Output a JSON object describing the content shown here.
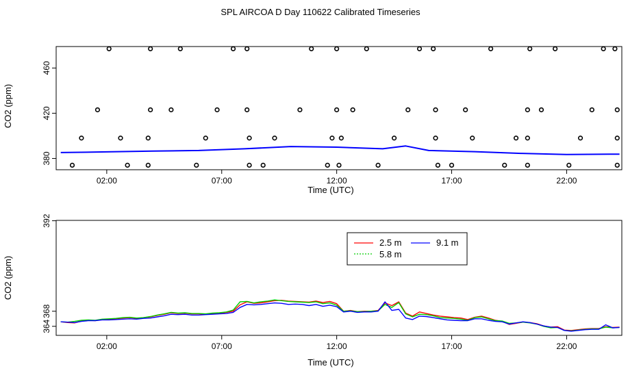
{
  "title": "SPL AIRCOA D  Day 110622  Calibrated Timeseries",
  "colors": {
    "s2_5": "#ff0000",
    "s5_8": "#00cd00",
    "s9_1": "#0000ff",
    "points": "#000000"
  },
  "chart_data": [
    {
      "type": "scatter",
      "xlabel": "Time (UTC)",
      "ylabel": "CO2 (ppm)",
      "xlim": [
        -0.2,
        24.4
      ],
      "ylim": [
        370,
        479
      ],
      "xticks": [
        2,
        7,
        12,
        17,
        22
      ],
      "xtick_labels": [
        "02:00",
        "07:00",
        "12:00",
        "17:00",
        "22:00"
      ],
      "yticks": [
        380,
        420,
        460
      ],
      "ytick_labels": [
        "380",
        "420",
        "460"
      ],
      "points": [
        {
          "x": 0.5,
          "y": 374
        },
        {
          "x": 0.9,
          "y": 398
        },
        {
          "x": 1.6,
          "y": 423
        },
        {
          "x": 2.1,
          "y": 477
        },
        {
          "x": 2.6,
          "y": 398
        },
        {
          "x": 2.9,
          "y": 374
        },
        {
          "x": 3.8,
          "y": 398
        },
        {
          "x": 3.8,
          "y": 374
        },
        {
          "x": 3.9,
          "y": 423
        },
        {
          "x": 3.9,
          "y": 477
        },
        {
          "x": 4.8,
          "y": 423
        },
        {
          "x": 5.2,
          "y": 477
        },
        {
          "x": 5.9,
          "y": 374
        },
        {
          "x": 6.3,
          "y": 398
        },
        {
          "x": 6.8,
          "y": 423
        },
        {
          "x": 7.5,
          "y": 477
        },
        {
          "x": 8.1,
          "y": 477
        },
        {
          "x": 8.1,
          "y": 423
        },
        {
          "x": 8.2,
          "y": 398
        },
        {
          "x": 8.2,
          "y": 374
        },
        {
          "x": 8.8,
          "y": 374
        },
        {
          "x": 9.3,
          "y": 398
        },
        {
          "x": 10.4,
          "y": 423
        },
        {
          "x": 10.9,
          "y": 477
        },
        {
          "x": 11.6,
          "y": 374
        },
        {
          "x": 11.8,
          "y": 398
        },
        {
          "x": 12.0,
          "y": 423
        },
        {
          "x": 12.0,
          "y": 477
        },
        {
          "x": 12.1,
          "y": 374
        },
        {
          "x": 12.2,
          "y": 398
        },
        {
          "x": 12.7,
          "y": 423
        },
        {
          "x": 13.3,
          "y": 477
        },
        {
          "x": 13.8,
          "y": 374
        },
        {
          "x": 14.5,
          "y": 398
        },
        {
          "x": 15.1,
          "y": 423
        },
        {
          "x": 15.6,
          "y": 477
        },
        {
          "x": 16.2,
          "y": 477
        },
        {
          "x": 16.3,
          "y": 423
        },
        {
          "x": 16.3,
          "y": 398
        },
        {
          "x": 16.4,
          "y": 374
        },
        {
          "x": 17.0,
          "y": 374
        },
        {
          "x": 17.6,
          "y": 423
        },
        {
          "x": 17.9,
          "y": 398
        },
        {
          "x": 18.7,
          "y": 477
        },
        {
          "x": 19.3,
          "y": 374
        },
        {
          "x": 19.8,
          "y": 398
        },
        {
          "x": 20.3,
          "y": 398
        },
        {
          "x": 20.3,
          "y": 374
        },
        {
          "x": 20.3,
          "y": 423
        },
        {
          "x": 20.4,
          "y": 477
        },
        {
          "x": 20.9,
          "y": 423
        },
        {
          "x": 21.5,
          "y": 477
        },
        {
          "x": 22.1,
          "y": 374
        },
        {
          "x": 22.6,
          "y": 398
        },
        {
          "x": 23.1,
          "y": 423
        },
        {
          "x": 23.6,
          "y": 477
        },
        {
          "x": 24.1,
          "y": 477
        },
        {
          "x": 24.2,
          "y": 423
        },
        {
          "x": 24.2,
          "y": 398
        },
        {
          "x": 24.2,
          "y": 374
        }
      ],
      "series": [
        {
          "name": "9.1 m",
          "color": "#0000ff",
          "x": [
            0,
            2,
            4,
            6,
            8,
            10,
            12,
            14,
            15,
            16,
            18,
            20,
            22,
            24.3
          ],
          "y": [
            385.2,
            385.8,
            386.5,
            387,
            388.5,
            390.5,
            390,
            388.5,
            391,
            387,
            386,
            384.5,
            383.5,
            383.8
          ]
        }
      ]
    },
    {
      "type": "line",
      "xlabel": "Time (UTC)",
      "ylabel": "CO2 (ppm)",
      "xlim": [
        -0.2,
        24.4
      ],
      "ylim": [
        361.6,
        392.1
      ],
      "xticks": [
        2,
        7,
        12,
        17,
        22
      ],
      "xtick_labels": [
        "02:00",
        "07:00",
        "12:00",
        "17:00",
        "22:00"
      ],
      "yticks": [
        364,
        368,
        392
      ],
      "ytick_labels": [
        "364",
        "368",
        "392"
      ],
      "legend": {
        "position": "top-center",
        "entries": [
          "2.5 m",
          "9.1 m",
          "5.8 m"
        ]
      },
      "series": [
        {
          "name": "2.5 m",
          "color": "#ff0000",
          "x": [
            0,
            0.3,
            0.6,
            0.9,
            1.2,
            1.5,
            1.8,
            2.1,
            2.4,
            2.7,
            3,
            3.3,
            3.6,
            3.9,
            4.2,
            4.5,
            4.8,
            5.1,
            5.4,
            5.7,
            6,
            6.3,
            6.6,
            6.9,
            7.2,
            7.5,
            7.8,
            8.1,
            8.4,
            8.7,
            9,
            9.3,
            9.6,
            9.9,
            10.2,
            10.5,
            10.8,
            11.1,
            11.4,
            11.7,
            12,
            12.3,
            12.6,
            12.9,
            13.2,
            13.5,
            13.8,
            14.1,
            14.4,
            14.7,
            15,
            15.3,
            15.6,
            15.9,
            16.2,
            16.5,
            16.8,
            17.1,
            17.4,
            17.7,
            18,
            18.3,
            18.6,
            18.9,
            19.2,
            19.5,
            19.8,
            20.1,
            20.4,
            20.7,
            21,
            21.3,
            21.6,
            21.9,
            22.2,
            22.5,
            22.8,
            23.1,
            23.4,
            23.7,
            24,
            24.3
          ],
          "y": [
            365.2,
            365.0,
            364.9,
            365.4,
            365.6,
            365.5,
            365.8,
            365.9,
            366.0,
            366.2,
            366.3,
            366.1,
            366.3,
            366.5,
            366.9,
            367.2,
            367.6,
            367.4,
            367.5,
            367.3,
            367.3,
            367.2,
            367.4,
            367.5,
            367.7,
            368.0,
            369.7,
            370.5,
            370.1,
            370.2,
            370.5,
            370.8,
            370.9,
            370.7,
            370.6,
            370.5,
            370.4,
            370.7,
            370.3,
            370.6,
            370.0,
            368.0,
            368.2,
            367.9,
            368.0,
            368.0,
            368.2,
            370.2,
            369.5,
            370.5,
            367.5,
            366.7,
            367.8,
            367.4,
            367.0,
            366.7,
            366.5,
            366.3,
            366.2,
            365.8,
            366.4,
            366.7,
            366.2,
            365.6,
            365.3,
            364.5,
            364.8,
            365.1,
            365.0,
            364.7,
            364.1,
            363.8,
            363.9,
            363.0,
            362.9,
            363.1,
            363.3,
            363.4,
            363.4,
            363.9,
            363.7,
            363.8
          ]
        },
        {
          "name": "5.8 m",
          "color": "#00cd00",
          "x": [
            0,
            0.3,
            0.6,
            0.9,
            1.2,
            1.5,
            1.8,
            2.1,
            2.4,
            2.7,
            3,
            3.3,
            3.6,
            3.9,
            4.2,
            4.5,
            4.8,
            5.1,
            5.4,
            5.7,
            6,
            6.3,
            6.6,
            6.9,
            7.2,
            7.5,
            7.8,
            8.1,
            8.4,
            8.7,
            9,
            9.3,
            9.6,
            9.9,
            10.2,
            10.5,
            10.8,
            11.1,
            11.4,
            11.7,
            12,
            12.3,
            12.6,
            12.9,
            13.2,
            13.5,
            13.8,
            14.1,
            14.4,
            14.7,
            15,
            15.3,
            15.6,
            15.9,
            16.2,
            16.5,
            16.8,
            17.1,
            17.4,
            17.7,
            18,
            18.3,
            18.6,
            18.9,
            19.2,
            19.5,
            19.8,
            20.1,
            20.4,
            20.7,
            21,
            21.3,
            21.6,
            21.9,
            22.2,
            22.5,
            22.8,
            23.1,
            23.4,
            23.7,
            24,
            24.3
          ],
          "y": [
            365.2,
            365.1,
            365.3,
            365.6,
            365.7,
            365.6,
            365.9,
            366.0,
            366.1,
            366.3,
            366.4,
            366.2,
            366.3,
            366.6,
            367.0,
            367.3,
            367.7,
            367.5,
            367.6,
            367.4,
            367.4,
            367.3,
            367.5,
            367.6,
            367.8,
            368.3,
            370.5,
            370.6,
            370.2,
            370.5,
            370.7,
            371.0,
            370.8,
            370.6,
            370.5,
            370.4,
            370.3,
            370.5,
            370.0,
            370.2,
            369.6,
            368.0,
            368.1,
            367.9,
            367.9,
            368.0,
            368.1,
            369.8,
            369.0,
            370.3,
            367.3,
            366.5,
            367.2,
            367.1,
            366.8,
            366.3,
            366.2,
            366.1,
            365.9,
            365.6,
            366.3,
            366.5,
            366.0,
            365.5,
            365.4,
            364.8,
            364.9,
            365.1,
            364.9,
            364.6,
            364.0,
            363.6,
            363.7,
            362.9,
            362.8,
            363.0,
            363.2,
            363.3,
            363.3,
            363.8,
            363.6,
            363.7
          ]
        },
        {
          "name": "9.1 m",
          "color": "#0000ff",
          "x": [
            0,
            0.3,
            0.6,
            0.9,
            1.2,
            1.5,
            1.8,
            2.1,
            2.4,
            2.7,
            3,
            3.3,
            3.6,
            3.9,
            4.2,
            4.5,
            4.8,
            5.1,
            5.4,
            5.7,
            6,
            6.3,
            6.6,
            6.9,
            7.2,
            7.5,
            7.8,
            8.1,
            8.4,
            8.7,
            9,
            9.3,
            9.6,
            9.9,
            10.2,
            10.5,
            10.8,
            11.1,
            11.4,
            11.7,
            12,
            12.3,
            12.6,
            12.9,
            13.2,
            13.5,
            13.8,
            14.1,
            14.4,
            14.7,
            15,
            15.3,
            15.6,
            15.9,
            16.2,
            16.5,
            16.8,
            17.1,
            17.4,
            17.7,
            18,
            18.3,
            18.6,
            18.9,
            19.2,
            19.5,
            19.8,
            20.1,
            20.4,
            20.7,
            21,
            21.3,
            21.6,
            21.9,
            22.2,
            22.5,
            22.8,
            23.1,
            23.4,
            23.7,
            24,
            24.3
          ],
          "y": [
            365.2,
            365.1,
            365.0,
            365.3,
            365.5,
            365.5,
            365.7,
            365.7,
            365.8,
            365.9,
            366.0,
            365.9,
            366.1,
            366.2,
            366.5,
            366.8,
            367.2,
            367.1,
            367.2,
            367.0,
            367.0,
            367.1,
            367.2,
            367.3,
            367.4,
            367.7,
            369.0,
            369.8,
            369.7,
            369.8,
            370.0,
            370.2,
            370.1,
            369.8,
            369.9,
            369.8,
            369.5,
            369.8,
            369.3,
            369.6,
            369.2,
            367.8,
            368.0,
            367.7,
            367.8,
            367.8,
            368.0,
            370.5,
            368.2,
            368.5,
            366.2,
            365.8,
            366.7,
            366.6,
            366.3,
            366.0,
            365.7,
            365.6,
            365.5,
            365.5,
            366.0,
            366.0,
            365.6,
            365.3,
            365.2,
            364.6,
            364.9,
            365.2,
            365.0,
            364.6,
            364.1,
            363.8,
            363.7,
            362.9,
            362.7,
            362.9,
            363.1,
            363.2,
            363.2,
            364.4,
            363.6,
            363.7
          ]
        }
      ]
    }
  ]
}
